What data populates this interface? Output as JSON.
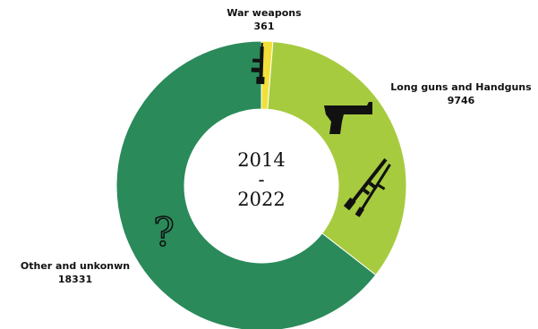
{
  "chart_data": {
    "type": "pie",
    "donut": true,
    "categories": [
      "War weapons",
      "Long guns and Handguns",
      "Other and unkonwn"
    ],
    "values": [
      361,
      9746,
      18331
    ],
    "center_label": [
      "2014",
      "-",
      "2022"
    ],
    "colors": {
      "War weapons": "#f2e03a",
      "Long guns and Handguns": "#a7cb3f",
      "Other and unkonwn": "#2a8a5a"
    },
    "legend": "none"
  },
  "icons": [
    "rifle-icon",
    "handgun-icon",
    "crossed-rifles-icon",
    "question-mark-icon"
  ]
}
